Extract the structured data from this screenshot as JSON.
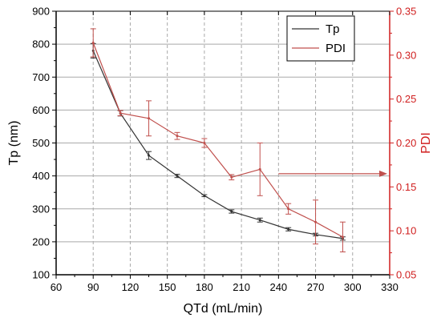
{
  "colors": {
    "tp": "#333333",
    "pdi": "#c0504d",
    "grid": "#a9a9a9",
    "axis": "#000000",
    "right_axis": "#d01f1f",
    "annotation": "#c0504d"
  },
  "chart_data": {
    "type": "line",
    "xlabel": "QTd (mL/min)",
    "ylabel": "Tp (nm)",
    "y2label": "PDI",
    "xlim": [
      60,
      330
    ],
    "ylim": [
      100,
      900
    ],
    "y2lim": [
      0.05,
      0.35
    ],
    "xticks": [
      "60",
      "90",
      "120",
      "150",
      "180",
      "210",
      "240",
      "270",
      "300",
      "330"
    ],
    "yticks": [
      "100",
      "200",
      "300",
      "400",
      "500",
      "600",
      "700",
      "800",
      "900"
    ],
    "y2ticks": [
      "0.05",
      "0.10",
      "0.15",
      "0.20",
      "0.25",
      "0.30",
      "0.35"
    ],
    "grid": true,
    "legend_position": "top-right",
    "annotation_arrow": {
      "from_x": 240,
      "to_x": 330,
      "y2": 0.165,
      "direction": "right"
    },
    "series": [
      {
        "name": "Tp",
        "axis": "left",
        "x": [
          90,
          112,
          135,
          158,
          180,
          202,
          225,
          248,
          270,
          292
        ],
        "y": [
          780,
          590,
          462,
          400,
          340,
          292,
          266,
          238,
          222,
          210
        ],
        "err": [
          22,
          8,
          12,
          5,
          3,
          5,
          6,
          5,
          4,
          5
        ]
      },
      {
        "name": "PDI",
        "axis": "right",
        "x": [
          90,
          112,
          135,
          158,
          180,
          202,
          225,
          248,
          270,
          292
        ],
        "y": [
          0.314,
          0.234,
          0.228,
          0.208,
          0.2,
          0.161,
          0.17,
          0.125,
          0.11,
          0.093
        ],
        "err": [
          0.016,
          0.003,
          0.02,
          0.004,
          0.005,
          0.003,
          0.03,
          0.006,
          0.025,
          0.017
        ]
      }
    ]
  }
}
